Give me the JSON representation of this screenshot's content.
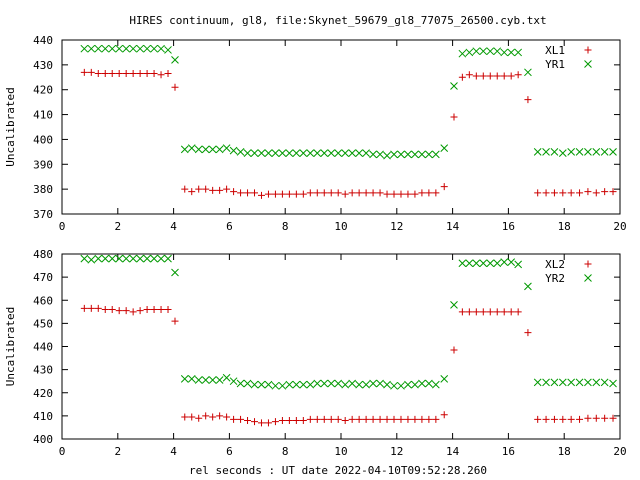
{
  "title": "HIRES continuum, gl8, file:Skynet_59679_gl8_77075_26500.cyb.txt",
  "xlabel": "rel seconds : UT date 2022-04-10T09:52:28.260",
  "colors": {
    "red": "#cc0000",
    "green": "#009900"
  },
  "chart_data": [
    {
      "type": "scatter",
      "title": "HIRES continuum, gl8, file:Skynet_59679_gl8_77075_26500.cyb.txt",
      "xlabel": "",
      "ylabel": "Uncalibrated",
      "xlim": [
        0,
        20
      ],
      "ylim": [
        370,
        440
      ],
      "xticks": [
        0,
        2,
        4,
        6,
        8,
        10,
        12,
        14,
        16,
        18,
        20
      ],
      "yticks": [
        370,
        380,
        390,
        400,
        410,
        420,
        430,
        440
      ],
      "legend": "top-right",
      "series": [
        {
          "name": "XL1",
          "marker": "plus",
          "color": "#cc0000",
          "x": [
            0.8,
            1.05,
            1.3,
            1.55,
            1.8,
            2.05,
            2.3,
            2.55,
            2.8,
            3.05,
            3.3,
            3.55,
            3.8,
            4.05,
            4.4,
            4.65,
            4.9,
            5.15,
            5.4,
            5.65,
            5.9,
            6.15,
            6.4,
            6.65,
            6.9,
            7.15,
            7.4,
            7.65,
            7.9,
            8.15,
            8.4,
            8.65,
            8.9,
            9.15,
            9.4,
            9.65,
            9.9,
            10.15,
            10.4,
            10.65,
            10.9,
            11.15,
            11.4,
            11.65,
            11.9,
            12.15,
            12.4,
            12.65,
            12.9,
            13.15,
            13.4,
            13.7,
            14.05,
            14.35,
            14.6,
            14.85,
            15.1,
            15.35,
            15.6,
            15.85,
            16.1,
            16.35,
            16.7,
            17.05,
            17.35,
            17.65,
            17.95,
            18.25,
            18.55,
            18.85,
            19.15,
            19.45,
            19.75
          ],
          "y": [
            427,
            427,
            426.5,
            426.5,
            426.5,
            426.5,
            426.5,
            426.5,
            426.5,
            426.5,
            426.5,
            426,
            426.5,
            421,
            380,
            379,
            380,
            380,
            379.5,
            379.5,
            380,
            379,
            378.5,
            378.5,
            378.5,
            377.5,
            378,
            378,
            378,
            378,
            378,
            378,
            378.5,
            378.5,
            378.5,
            378.5,
            378.5,
            378,
            378.5,
            378.5,
            378.5,
            378.5,
            378.5,
            378,
            378,
            378,
            378,
            378,
            378.5,
            378.5,
            378.5,
            381,
            409,
            425,
            426,
            425.5,
            425.5,
            425.5,
            425.5,
            425.5,
            425.5,
            426,
            416,
            378.5,
            378.5,
            378.5,
            378.5,
            378.5,
            378.5,
            379,
            378.5,
            379,
            379
          ]
        },
        {
          "name": "YR1",
          "marker": "cross",
          "color": "#009900",
          "x": [
            0.8,
            1.05,
            1.3,
            1.55,
            1.8,
            2.05,
            2.3,
            2.55,
            2.8,
            3.05,
            3.3,
            3.55,
            3.8,
            4.05,
            4.4,
            4.65,
            4.9,
            5.15,
            5.4,
            5.65,
            5.9,
            6.15,
            6.4,
            6.65,
            6.9,
            7.15,
            7.4,
            7.65,
            7.9,
            8.15,
            8.4,
            8.65,
            8.9,
            9.15,
            9.4,
            9.65,
            9.9,
            10.15,
            10.4,
            10.65,
            10.9,
            11.15,
            11.4,
            11.65,
            11.9,
            12.15,
            12.4,
            12.65,
            12.9,
            13.15,
            13.4,
            13.7,
            14.05,
            14.35,
            14.6,
            14.85,
            15.1,
            15.35,
            15.6,
            15.85,
            16.1,
            16.35,
            16.7,
            17.05,
            17.35,
            17.65,
            17.95,
            18.25,
            18.55,
            18.85,
            19.15,
            19.45,
            19.75
          ],
          "y": [
            436.5,
            436.5,
            436.5,
            436.5,
            436.5,
            436.5,
            436.5,
            436.5,
            436.5,
            436.5,
            436.5,
            436.5,
            436,
            432,
            396,
            396.5,
            396,
            396,
            396,
            396,
            396.5,
            395.5,
            395,
            394.5,
            394.5,
            394.5,
            394.5,
            394.5,
            394.5,
            394.5,
            394.5,
            394.5,
            394.5,
            394.5,
            394.5,
            394.5,
            394.5,
            394.5,
            394.5,
            394.5,
            394.5,
            394,
            394,
            393.5,
            394,
            394,
            394,
            394,
            394,
            394,
            394,
            396.5,
            421.5,
            434.5,
            435,
            435.5,
            435.5,
            435.5,
            435.5,
            435,
            435,
            435,
            427,
            395,
            395,
            395,
            394.5,
            395,
            395,
            395,
            395,
            395,
            395
          ]
        }
      ]
    },
    {
      "type": "scatter",
      "title": "",
      "xlabel": "rel seconds : UT date 2022-04-10T09:52:28.260",
      "ylabel": "Uncalibrated",
      "xlim": [
        0,
        20
      ],
      "ylim": [
        400,
        480
      ],
      "xticks": [
        0,
        2,
        4,
        6,
        8,
        10,
        12,
        14,
        16,
        18,
        20
      ],
      "yticks": [
        400,
        410,
        420,
        430,
        440,
        450,
        460,
        470,
        480
      ],
      "legend": "top-right",
      "series": [
        {
          "name": "XL2",
          "marker": "plus",
          "color": "#cc0000",
          "x": [
            0.8,
            1.05,
            1.3,
            1.55,
            1.8,
            2.05,
            2.3,
            2.55,
            2.8,
            3.05,
            3.3,
            3.55,
            3.8,
            4.05,
            4.4,
            4.65,
            4.9,
            5.15,
            5.4,
            5.65,
            5.9,
            6.15,
            6.4,
            6.65,
            6.9,
            7.15,
            7.4,
            7.65,
            7.9,
            8.15,
            8.4,
            8.65,
            8.9,
            9.15,
            9.4,
            9.65,
            9.9,
            10.15,
            10.4,
            10.65,
            10.9,
            11.15,
            11.4,
            11.65,
            11.9,
            12.15,
            12.4,
            12.65,
            12.9,
            13.15,
            13.4,
            13.7,
            14.05,
            14.35,
            14.6,
            14.85,
            15.1,
            15.35,
            15.6,
            15.85,
            16.1,
            16.35,
            16.7,
            17.05,
            17.35,
            17.65,
            17.95,
            18.25,
            18.55,
            18.85,
            19.15,
            19.45,
            19.75
          ],
          "y": [
            456.5,
            456.5,
            456.5,
            456,
            456,
            455.5,
            455.5,
            455,
            455.5,
            456,
            456,
            456,
            456,
            451,
            409.5,
            409.5,
            409,
            410,
            409.5,
            410,
            409.5,
            408.5,
            408.5,
            408,
            407.5,
            407,
            407,
            407.5,
            408,
            408,
            408,
            408,
            408.5,
            408.5,
            408.5,
            408.5,
            408.5,
            408,
            408.5,
            408.5,
            408.5,
            408.5,
            408.5,
            408.5,
            408.5,
            408.5,
            408.5,
            408.5,
            408.5,
            408.5,
            408.5,
            410.5,
            438.5,
            455,
            455,
            455,
            455,
            455,
            455,
            455,
            455,
            455,
            446,
            408.5,
            408.5,
            408.5,
            408.5,
            408.5,
            408.5,
            409,
            409,
            409,
            409
          ]
        },
        {
          "name": "YR2",
          "marker": "cross",
          "color": "#009900",
          "x": [
            0.8,
            1.05,
            1.3,
            1.55,
            1.8,
            2.05,
            2.3,
            2.55,
            2.8,
            3.05,
            3.3,
            3.55,
            3.8,
            4.05,
            4.4,
            4.65,
            4.9,
            5.15,
            5.4,
            5.65,
            5.9,
            6.15,
            6.4,
            6.65,
            6.9,
            7.15,
            7.4,
            7.65,
            7.9,
            8.15,
            8.4,
            8.65,
            8.9,
            9.15,
            9.4,
            9.65,
            9.9,
            10.15,
            10.4,
            10.65,
            10.9,
            11.15,
            11.4,
            11.65,
            11.9,
            12.15,
            12.4,
            12.65,
            12.9,
            13.15,
            13.4,
            13.7,
            14.05,
            14.35,
            14.6,
            14.85,
            15.1,
            15.35,
            15.6,
            15.85,
            16.1,
            16.35,
            16.7,
            17.05,
            17.35,
            17.65,
            17.95,
            18.25,
            18.55,
            18.85,
            19.15,
            19.45,
            19.75
          ],
          "y": [
            478,
            477.5,
            478,
            478,
            478,
            478,
            478,
            478,
            478,
            478,
            478,
            478,
            478,
            472,
            426,
            426,
            425.5,
            425.5,
            425.5,
            425.5,
            426.5,
            425,
            424,
            424,
            423.5,
            423.5,
            423.5,
            423,
            423,
            423.5,
            423.5,
            423.5,
            423.5,
            424,
            424,
            424,
            424,
            423.5,
            424,
            423.5,
            423.5,
            424,
            424,
            423.5,
            423,
            423,
            423.5,
            423.5,
            424,
            424,
            423.5,
            426,
            458,
            476,
            476,
            476,
            476,
            476,
            476,
            476.5,
            476.5,
            475.5,
            466,
            424.5,
            424.5,
            424.5,
            424.5,
            424.5,
            424.5,
            424.5,
            424.5,
            424.5,
            424
          ]
        }
      ]
    }
  ]
}
